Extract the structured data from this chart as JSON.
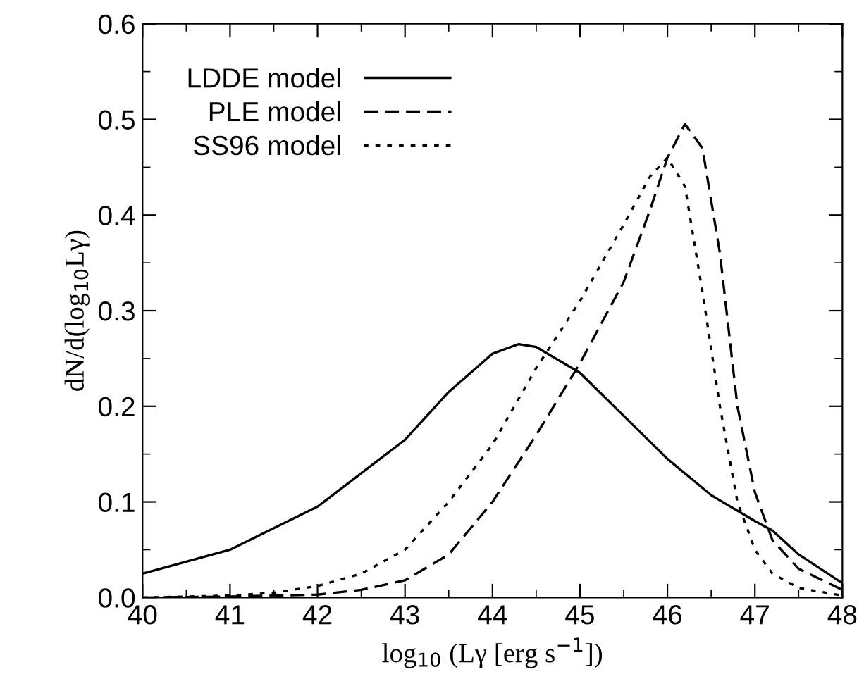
{
  "chart_data": {
    "type": "line",
    "xlabel": "log$_{10}$ (Lγ [erg s$^{−1}$])",
    "ylabel": "dN/d(log$_{10}$Lγ)",
    "xlim": [
      40,
      48
    ],
    "ylim": [
      0,
      0.6
    ],
    "xticks": [
      40,
      41,
      42,
      43,
      44,
      45,
      46,
      47,
      48
    ],
    "yticks": [
      {
        "value": 0,
        "label": "0.0"
      },
      0.1,
      0.2,
      0.3,
      0.4,
      0.5,
      0.6
    ],
    "grid": false,
    "legend": "top left",
    "marker": "none",
    "series": [
      {
        "name": "LDDE model",
        "color": "#000000",
        "line_style": "solid",
        "x": [
          40,
          41,
          42,
          43,
          43.5,
          44,
          44.3,
          44.5,
          45,
          45.5,
          46,
          46.5,
          47,
          47.2,
          47.5,
          48
        ],
        "values": [
          0.025,
          0.05,
          0.095,
          0.165,
          0.215,
          0.255,
          0.265,
          0.262,
          0.235,
          0.19,
          0.145,
          0.107,
          0.08,
          0.07,
          0.045,
          0.015
        ]
      },
      {
        "name": "PLE model",
        "color": "#000000",
        "line_style": "dashed",
        "x": [
          40,
          41,
          42,
          42.5,
          43,
          43.5,
          44,
          44.5,
          45,
          45.5,
          45.8,
          46,
          46.2,
          46.4,
          46.6,
          46.8,
          47,
          47.2,
          47.5,
          48
        ],
        "values": [
          0,
          0.001,
          0.003,
          0.008,
          0.018,
          0.045,
          0.1,
          0.17,
          0.245,
          0.33,
          0.405,
          0.46,
          0.495,
          0.47,
          0.36,
          0.2,
          0.11,
          0.06,
          0.03,
          0.008
        ]
      },
      {
        "name": "SS96 model",
        "color": "#000000",
        "line_style": "dotted",
        "x": [
          40,
          41,
          41.5,
          42,
          42.5,
          43,
          43.5,
          44,
          44.5,
          45,
          45.5,
          45.8,
          46,
          46.2,
          46.4,
          46.6,
          46.8,
          47,
          47.2,
          47.5,
          48
        ],
        "values": [
          0,
          0.002,
          0.005,
          0.012,
          0.025,
          0.05,
          0.1,
          0.16,
          0.24,
          0.31,
          0.39,
          0.44,
          0.46,
          0.43,
          0.32,
          0.2,
          0.1,
          0.05,
          0.025,
          0.01,
          0.002
        ]
      }
    ]
  }
}
